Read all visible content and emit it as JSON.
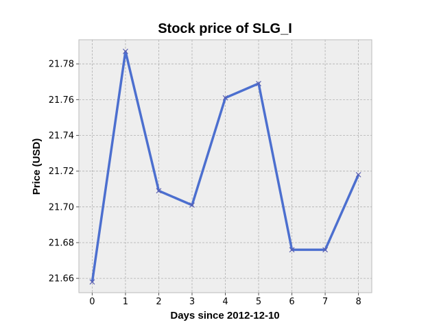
{
  "chart_data": {
    "type": "line",
    "title": "Stock price of SLG_I",
    "xlabel": "Days since 2012-12-10",
    "ylabel": "Price (USD)",
    "x": [
      0,
      1,
      2,
      3,
      4,
      5,
      6,
      7,
      8
    ],
    "series": [
      {
        "values": [
          21.658,
          21.787,
          21.709,
          21.701,
          21.761,
          21.769,
          21.676,
          21.676,
          21.718
        ],
        "color": "#4c6fcf",
        "marker": "x"
      }
    ],
    "xticks": [
      "0",
      "1",
      "2",
      "3",
      "4",
      "5",
      "6",
      "7",
      "8"
    ],
    "yticks": [
      "21.66",
      "21.68",
      "21.70",
      "21.72",
      "21.74",
      "21.76",
      "21.78"
    ],
    "xlim": [
      -0.4,
      8.4
    ],
    "ylim": [
      21.652,
      21.7935
    ],
    "grid": true,
    "background_color": "#eeeeee"
  }
}
